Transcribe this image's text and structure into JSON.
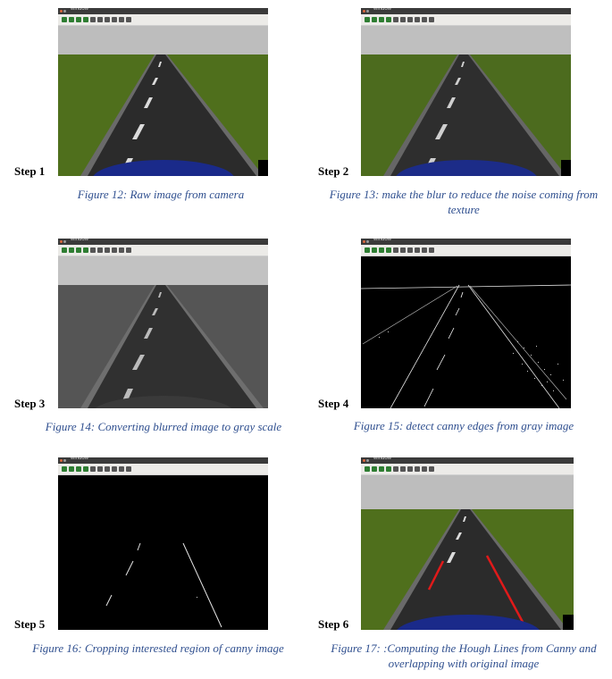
{
  "window_title": "window",
  "panels": [
    {
      "step": "Step 1",
      "caption": "Figure 12: Raw image from camera"
    },
    {
      "step": "Step 2",
      "caption": "Figure 13: make the blur to reduce the noise coming from texture"
    },
    {
      "step": "Step 3",
      "caption": "Figure 14: Converting blurred image to gray scale"
    },
    {
      "step": "Step 4",
      "caption": "Figure 15: detect canny edges from gray image"
    },
    {
      "step": "Step 5",
      "caption": "Figure 16: Cropping interested region of canny image"
    },
    {
      "step": "Step 6",
      "caption": "Figure 17: :Computing the Hough Lines from Canny and overlapping with original image"
    }
  ],
  "colors": {
    "caption": "#2f4f8f",
    "sky": "#bdbdbd",
    "grass": "#4f6f1c",
    "road": "#2b2b2b",
    "hough_line": "#e01a1a"
  }
}
